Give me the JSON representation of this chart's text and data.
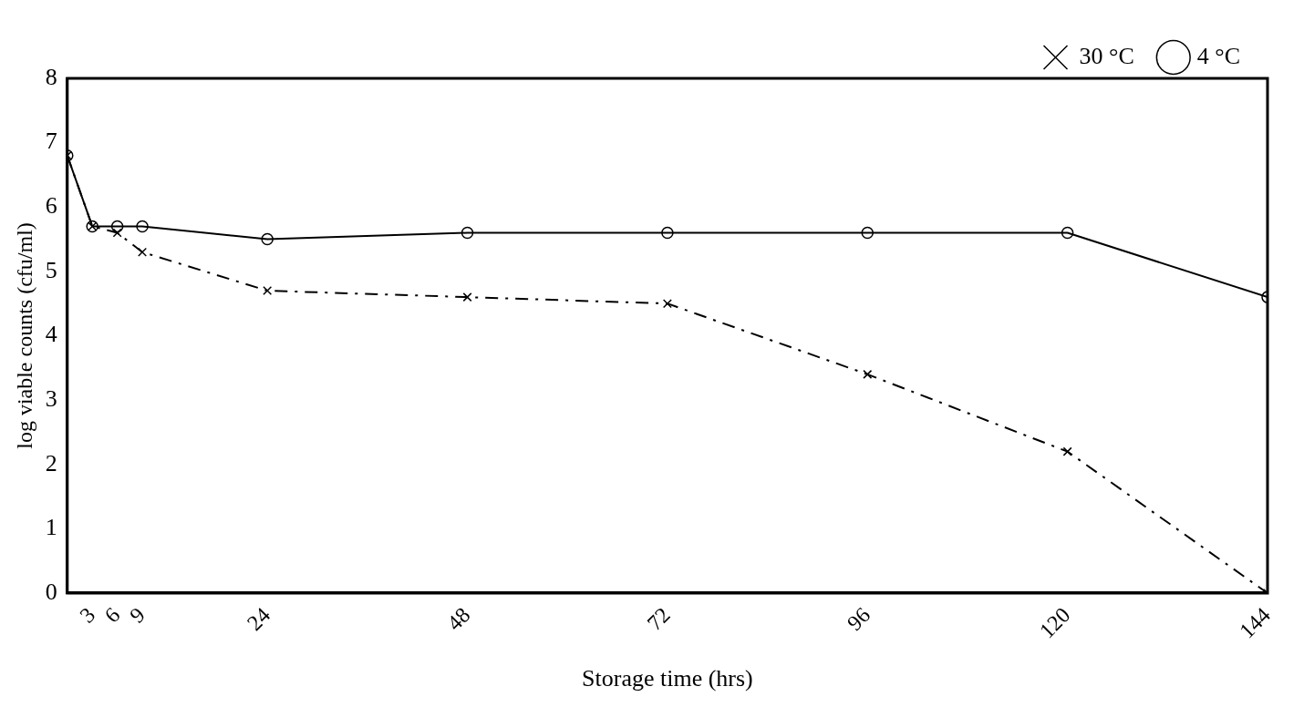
{
  "chart_data": {
    "type": "line",
    "xlabel": "Storage time (hrs)",
    "ylabel": "log viable counts (cfu/ml)",
    "x": [
      0,
      3,
      6,
      9,
      24,
      48,
      72,
      96,
      120,
      144
    ],
    "series": [
      {
        "name": "30 °C",
        "color": "#000000",
        "marker": "cross",
        "line_style": "dashed",
        "values": [
          6.8,
          5.7,
          5.6,
          5.3,
          4.7,
          4.6,
          4.5,
          3.4,
          2.2,
          0
        ]
      },
      {
        "name": "4 °C",
        "color": "#000000",
        "marker": "circle",
        "line_style": "solid",
        "values": [
          6.8,
          5.7,
          5.7,
          5.7,
          5.5,
          5.6,
          5.6,
          5.6,
          5.6,
          4.6
        ]
      }
    ],
    "xlim": [
      0,
      144
    ],
    "xticks": [
      3,
      6,
      9,
      24,
      48,
      72,
      96,
      120,
      144
    ],
    "ylim": [
      0,
      8
    ],
    "yticks": [
      0,
      1,
      2,
      3,
      4,
      5,
      6,
      7,
      8
    ],
    "grid": false,
    "legend": "top right"
  }
}
